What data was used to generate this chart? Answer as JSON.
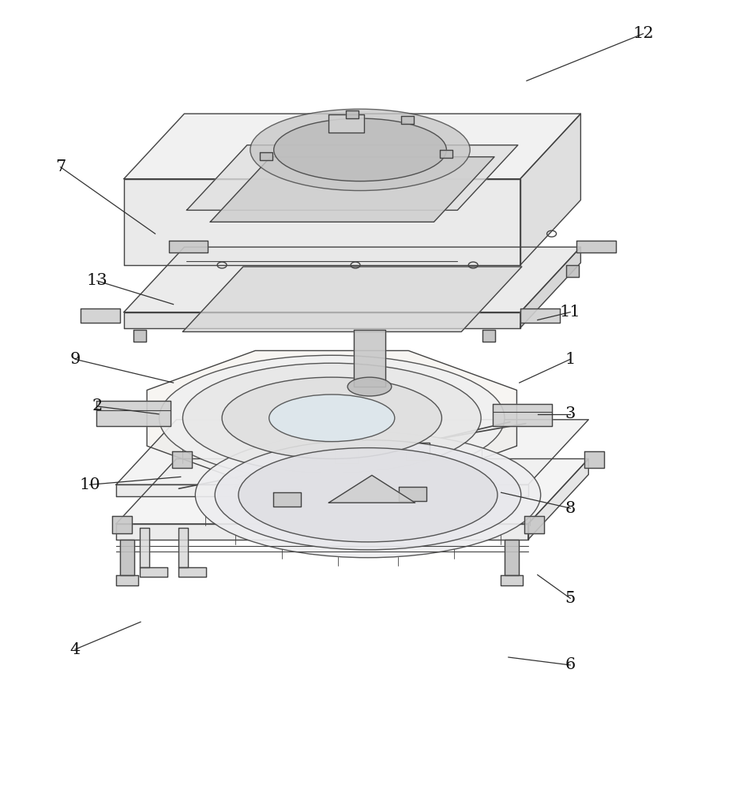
{
  "background_color": "#ffffff",
  "line_color": "#444444",
  "line_width": 1.0,
  "label_fontsize": 15,
  "figsize": [
    9.28,
    10.0
  ],
  "dpi": 100,
  "annotations": [
    [
      12,
      0.88,
      0.04,
      0.72,
      0.1
    ],
    [
      7,
      0.08,
      0.21,
      0.21,
      0.295
    ],
    [
      13,
      0.13,
      0.355,
      0.235,
      0.385
    ],
    [
      11,
      0.78,
      0.395,
      0.735,
      0.405
    ],
    [
      9,
      0.1,
      0.455,
      0.235,
      0.485
    ],
    [
      1,
      0.78,
      0.455,
      0.71,
      0.485
    ],
    [
      2,
      0.13,
      0.515,
      0.215,
      0.525
    ],
    [
      3,
      0.78,
      0.525,
      0.735,
      0.525
    ],
    [
      10,
      0.12,
      0.615,
      0.245,
      0.605
    ],
    [
      8,
      0.78,
      0.645,
      0.685,
      0.625
    ],
    [
      4,
      0.1,
      0.825,
      0.19,
      0.79
    ],
    [
      5,
      0.78,
      0.76,
      0.735,
      0.73
    ],
    [
      6,
      0.78,
      0.845,
      0.695,
      0.835
    ]
  ]
}
